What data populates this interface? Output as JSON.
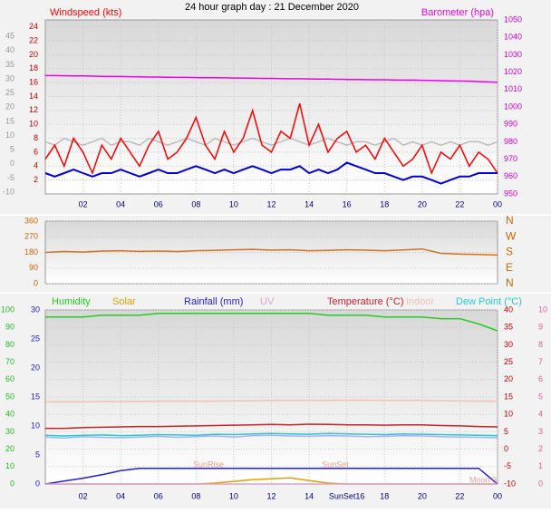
{
  "chart_data": [
    {
      "type": "line",
      "title": "24 hour graph day : 21 December 2020",
      "x": [
        0,
        0.5,
        1,
        1.5,
        2,
        2.5,
        3,
        3.5,
        4,
        4.5,
        5,
        5.5,
        6,
        6.5,
        7,
        7.5,
        8,
        8.5,
        9,
        9.5,
        10,
        10.5,
        11,
        11.5,
        12,
        12.5,
        13,
        13.5,
        14,
        14.5,
        15,
        15.5,
        16,
        16.5,
        17,
        17.5,
        18,
        18.5,
        19,
        19.5,
        20,
        20.5,
        21,
        21.5,
        22,
        22.5,
        23,
        23.5,
        24
      ],
      "xlim": [
        0,
        24
      ],
      "xticks": [
        {
          "value": 2,
          "label": "02"
        },
        {
          "value": 4,
          "label": "04"
        },
        {
          "value": 6,
          "label": "06"
        },
        {
          "value": 8,
          "label": "08"
        },
        10,
        12,
        14,
        16,
        18,
        20,
        22,
        {
          "value": 24,
          "label": "00"
        }
      ],
      "ylim": [
        0,
        25
      ],
      "yticks": [
        2,
        4,
        6,
        8,
        10,
        12,
        14,
        16,
        18,
        20,
        22,
        24
      ],
      "y2lim": [
        950,
        1050
      ],
      "y2ticks": [
        950,
        960,
        970,
        980,
        990,
        1000,
        1010,
        1020,
        1030,
        1040,
        1050
      ],
      "y3lim": [
        -10.6,
        50.8
      ],
      "y3ticks": [
        -10,
        -5,
        0,
        5,
        10,
        15,
        20,
        25,
        30,
        35,
        40,
        45
      ],
      "axis_colors": {
        "y": "#cc0000",
        "y2": "#cc00cc",
        "y3": "#999999"
      },
      "grid": true,
      "series": [
        {
          "color": "#bbbbbb",
          "values": [
            7.5,
            7,
            8,
            7.5,
            7,
            7.5,
            8,
            7,
            7.5,
            7.5,
            7,
            8,
            7.5,
            7,
            7.5,
            8,
            7.5,
            7,
            8,
            7.5,
            7,
            7.5,
            8,
            7.5,
            7,
            7.5,
            8,
            7.5,
            7,
            7.5,
            8,
            7.5,
            7,
            7.5,
            7.5,
            7,
            7.5,
            8,
            7,
            7.5,
            7,
            7.5,
            7,
            7.5,
            7,
            7.5,
            7.5,
            7,
            7.5
          ]
        },
        {
          "name": "Windspeed (kts)",
          "color": "#ff0000",
          "values": [
            5,
            7,
            4,
            8,
            6,
            3,
            7,
            5,
            8,
            6,
            4,
            7,
            9,
            5,
            6,
            8,
            11,
            7,
            5,
            9,
            6,
            8,
            12,
            7,
            6,
            9,
            8,
            13,
            7,
            10,
            6,
            8,
            9,
            6,
            7,
            5,
            8,
            6,
            4,
            5,
            7,
            3,
            6,
            5,
            7,
            4,
            6,
            5,
            3
          ]
        },
        {
          "color": "#0000dd",
          "values": [
            3,
            2.5,
            3,
            3.5,
            3,
            2.5,
            3,
            3,
            3.5,
            3,
            2.5,
            3,
            3.5,
            3,
            3,
            3.5,
            4,
            3.5,
            3,
            3.5,
            3,
            3.5,
            4,
            3.5,
            3,
            3.5,
            3.5,
            4,
            3,
            3.5,
            3,
            3.5,
            4.5,
            4,
            3.5,
            3,
            3,
            2.5,
            2,
            2.5,
            2.5,
            2,
            1.5,
            2,
            2.5,
            2.5,
            3,
            3,
            3
          ]
        },
        {
          "name": "Barometer (hpa)",
          "color": "#ee00ee",
          "axis": "y2",
          "values": [
            1018.0,
            1018.0,
            1017.9,
            1017.8,
            1017.8,
            1017.7,
            1017.6,
            1017.5,
            1017.5,
            1017.4,
            1017.3,
            1017.2,
            1017.2,
            1017.1,
            1017.0,
            1017.0,
            1016.9,
            1016.8,
            1016.8,
            1016.7,
            1016.6,
            1016.6,
            1016.5,
            1016.4,
            1016.4,
            1016.3,
            1016.2,
            1016.2,
            1016.1,
            1016.0,
            1016.0,
            1015.9,
            1015.8,
            1015.8,
            1015.7,
            1015.6,
            1015.6,
            1015.5,
            1015.4,
            1015.4,
            1015.3,
            1015.2,
            1015.1,
            1015.0,
            1014.9,
            1014.8,
            1014.6,
            1014.4,
            1014.2
          ]
        }
      ]
    },
    {
      "type": "line",
      "x": [
        0,
        1,
        2,
        3,
        4,
        5,
        6,
        7,
        8,
        9,
        10,
        11,
        12,
        13,
        14,
        15,
        16,
        17,
        18,
        19,
        20,
        21,
        22,
        23,
        24
      ],
      "xlim": [
        0,
        24
      ],
      "ylim": [
        0,
        360
      ],
      "yticks": [
        0,
        90,
        180,
        270,
        360
      ],
      "y2lim": [
        0,
        360
      ],
      "y2ticks": [
        {
          "value": 0,
          "label": "N"
        },
        {
          "value": 90,
          "label": "E"
        },
        {
          "value": 180,
          "label": "S"
        },
        {
          "value": 270,
          "label": "W"
        },
        {
          "value": 360,
          "label": "N"
        }
      ],
      "axis_colors": {
        "y": "#cc6600",
        "y2": "#cc6600"
      },
      "grid": true,
      "series": [
        {
          "color": "#d2741e",
          "values": [
            180,
            185,
            182,
            188,
            190,
            186,
            188,
            185,
            190,
            192,
            195,
            198,
            193,
            195,
            190,
            192,
            195,
            193,
            190,
            194,
            200,
            175,
            170,
            168,
            165
          ]
        }
      ]
    },
    {
      "type": "line",
      "x": [
        0,
        1,
        2,
        3,
        4,
        5,
        6,
        7,
        8,
        9,
        10,
        11,
        12,
        13,
        14,
        15,
        16,
        17,
        18,
        19,
        20,
        21,
        22,
        23,
        24
      ],
      "xlim": [
        0,
        24
      ],
      "xticks": [
        {
          "value": 2,
          "label": "02"
        },
        {
          "value": 4,
          "label": "04"
        },
        {
          "value": 6,
          "label": "06"
        },
        {
          "value": 8,
          "label": "08"
        },
        10,
        12,
        14,
        {
          "value": 16,
          "label": "SunSet16"
        },
        18,
        20,
        22,
        {
          "value": 24,
          "label": "00"
        }
      ],
      "ylim": [
        0,
        100
      ],
      "yticks": [
        0,
        10,
        20,
        30,
        40,
        50,
        60,
        70,
        80,
        90,
        100
      ],
      "y2lim": [
        0,
        30
      ],
      "y2ticks": [
        0,
        5,
        10,
        15,
        20,
        25,
        30
      ],
      "y3lim": [
        -10,
        40
      ],
      "y3ticks": [
        -10,
        -5,
        0,
        5,
        10,
        15,
        20,
        25,
        30,
        35,
        40
      ],
      "y4lim": [
        0,
        10
      ],
      "y4ticks": [
        0,
        1,
        2,
        3,
        4,
        5,
        6,
        7,
        8,
        9,
        10
      ],
      "axis_colors": {
        "y": "#22bb22",
        "y2": "#2222cc",
        "y3": "#cc0000",
        "y4": "#e060a0"
      },
      "grid": true,
      "annotations": [
        "SunRise",
        "SunSet",
        "Moon 9"
      ],
      "series": [
        {
          "name": "Humidity",
          "color": "#22cc22",
          "values": [
            96,
            96,
            96,
            97,
            97,
            97,
            98,
            98,
            98,
            98,
            98,
            98,
            98,
            98,
            98,
            97,
            97,
            97,
            96,
            96,
            96,
            95,
            95,
            92,
            88
          ]
        },
        {
          "name": "Solar",
          "color": "#e0a000",
          "values": [
            0,
            0,
            0,
            0,
            0,
            0,
            0,
            0,
            0,
            0.5,
            1.5,
            2.5,
            3,
            3.5,
            2,
            0.5,
            0,
            0,
            0,
            0,
            0,
            0,
            0,
            0,
            0
          ]
        },
        {
          "name": "Rainfall (mm)",
          "color": "#2222cc",
          "axis": "y2",
          "values": [
            0,
            0.5,
            1,
            1.6,
            2.3,
            2.7,
            2.7,
            2.7,
            2.7,
            2.7,
            2.7,
            2.7,
            2.7,
            2.7,
            2.7,
            2.7,
            2.7,
            2.7,
            2.7,
            2.7,
            2.7,
            2.7,
            2.7,
            2.7,
            0
          ]
        },
        {
          "name": "UV",
          "color": "#e0a0d0",
          "axis": "y4",
          "values": [
            0,
            0,
            0,
            0,
            0,
            0,
            0,
            0,
            0,
            0,
            0,
            0,
            0,
            0,
            0,
            0,
            0,
            0,
            0,
            0,
            0,
            0,
            0,
            0,
            0
          ]
        },
        {
          "name": "Temperature (°C)",
          "color": "#cc2222",
          "axis": "y3",
          "values": [
            6,
            6,
            6.2,
            6.3,
            6.4,
            6.5,
            6.5,
            6.6,
            6.7,
            6.8,
            6.9,
            7,
            7.1,
            7,
            7.2,
            7.1,
            7,
            7,
            6.9,
            7,
            7,
            6.8,
            6.7,
            6.5,
            6.4
          ]
        },
        {
          "name": "Indoor",
          "color": "#f4c0b0",
          "axis": "y3",
          "values": [
            13.6,
            13.6,
            13.6,
            13.7,
            13.7,
            13.7,
            13.8,
            13.8,
            13.8,
            13.8,
            13.9,
            13.9,
            14,
            14,
            14,
            14,
            14.1,
            14.1,
            14,
            14,
            14,
            13.9,
            13.9,
            13.8,
            13.8
          ]
        },
        {
          "name": "Dew Point (°C)",
          "color": "#22cccc",
          "axis": "y3",
          "values": [
            4,
            3.8,
            4,
            4.1,
            3.9,
            4,
            4.2,
            4.1,
            4,
            4.3,
            4.2,
            4.4,
            4.5,
            4.4,
            4.3,
            4.5,
            4.4,
            4.3,
            4.2,
            4.4,
            4.3,
            4.2,
            4.1,
            4,
            3.9
          ]
        },
        {
          "color": "#aab0f0",
          "axis": "y3",
          "values": [
            3.5,
            3.2,
            3.6,
            3.4,
            3.3,
            3.5,
            3.7,
            3.4,
            3.6,
            3.8,
            3.5,
            3.9,
            4,
            3.8,
            3.7,
            3.9,
            3.8,
            3.6,
            3.7,
            3.9,
            3.8,
            3.6,
            3.5,
            3.4,
            3.3
          ]
        }
      ]
    }
  ]
}
